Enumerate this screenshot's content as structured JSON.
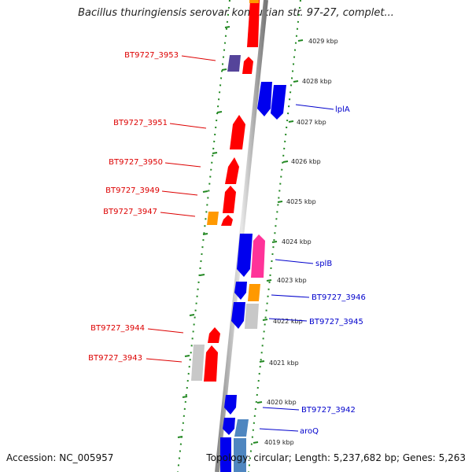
{
  "title": "Bacillus thuringiensis serovar konkukian str. 97-27, complet...",
  "footer": {
    "accession": "Accession: NC_005957",
    "summary": "Topology: circular; Length: 5,237,682 bp; Genes: 5,263"
  },
  "kbp_ticks": [
    "4029 kbp",
    "4028 kbp",
    "4027 kbp",
    "4026 kbp",
    "4025 kbp",
    "4024 kbp",
    "4023 kbp",
    "4022 kbp",
    "4021 kbp",
    "4020 kbp",
    "4019 kbp"
  ],
  "left_labels": [
    "BT9727_3953",
    "BT9727_3951",
    "BT9727_3950",
    "BT9727_3949",
    "BT9727_3947",
    "BT9727_3944",
    "BT9727_3943"
  ],
  "right_labels": [
    "lplA",
    "splB",
    "BT9727_3946",
    "BT9727_3945",
    "BT9727_3942",
    "aroQ"
  ],
  "colors": {
    "reverse_gene": "#ff0000",
    "forward_gene": "#0000ee",
    "orange_gene": "#ff9900",
    "pink_gene": "#ff3399",
    "purple_gene": "#55449a",
    "gray_gene": "#c8c8c8",
    "steel_gene": "#4f86c0",
    "ruler": "#228822",
    "left_label": "#dd0000",
    "right_label": "#0000cc"
  }
}
